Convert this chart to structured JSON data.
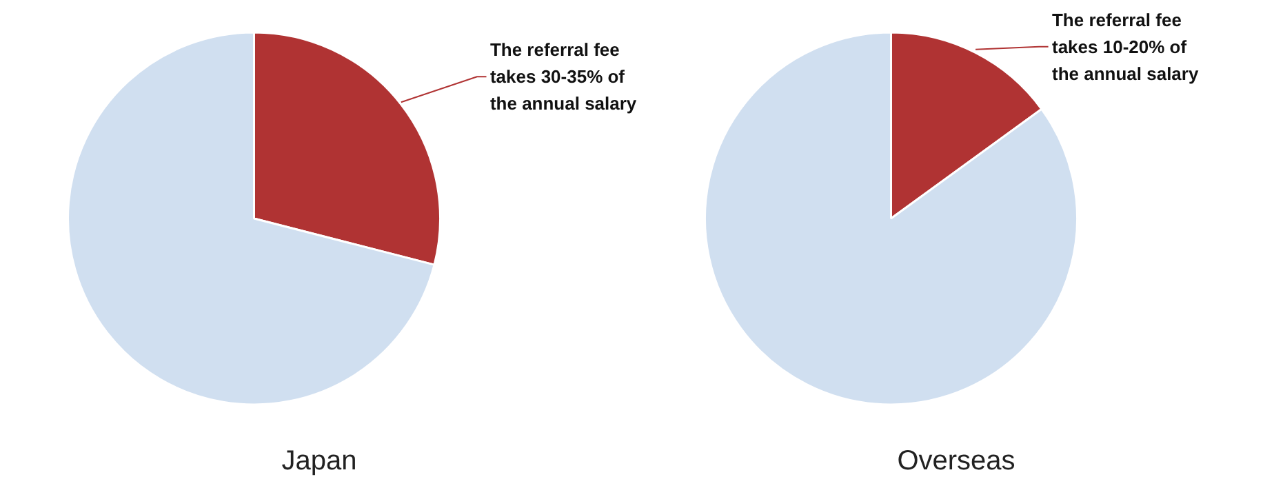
{
  "chart_data": [
    {
      "type": "pie",
      "title": "Japan",
      "categories": [
        null,
        null
      ],
      "values": [
        29,
        71
      ],
      "colors": [
        "#b03333",
        "#d0dff0"
      ],
      "annotations": [
        "The referral fee takes 30-35% of the annual salary"
      ]
    },
    {
      "type": "pie",
      "title": "Overseas",
      "categories": [
        null,
        null
      ],
      "values": [
        15,
        85
      ],
      "colors": [
        "#b03333",
        "#d0dff0"
      ],
      "annotations": [
        "The referral fee takes 10-20% of the annual salary"
      ]
    }
  ]
}
